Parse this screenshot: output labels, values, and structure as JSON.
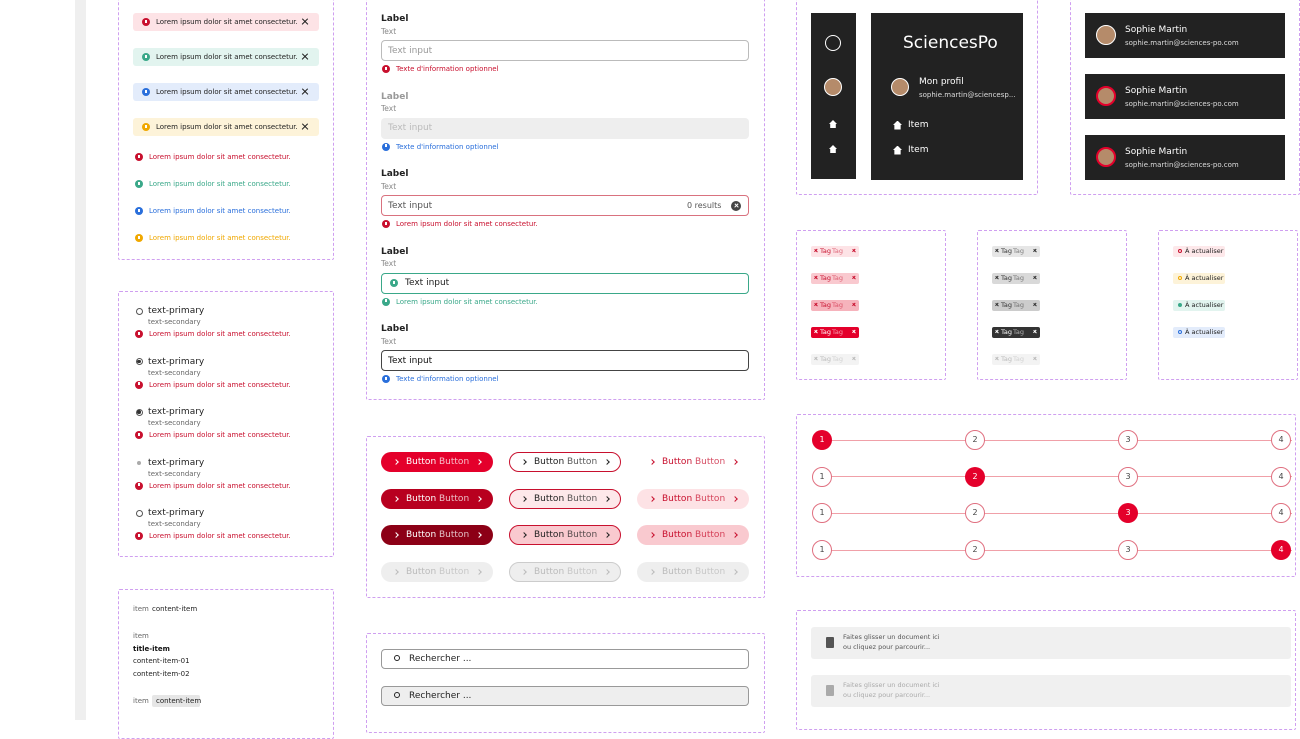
{
  "alerts": {
    "boxed": [
      "Lorem ipsum dolor sit amet consectetur.",
      "Lorem ipsum dolor sit amet consectetur.",
      "Lorem ipsum dolor sit amet consectetur.",
      "Lorem ipsum dolor sit amet consectetur."
    ],
    "inline": [
      "Lorem ipsum dolor sit amet consectetur.",
      "Lorem ipsum dolor sit amet consectetur.",
      "Lorem ipsum dolor sit amet consectetur.",
      "Lorem ipsum dolor sit amet consectetur."
    ]
  },
  "radios": [
    {
      "title": "text-primary",
      "subtitle": "text-secondary",
      "error": "Lorem ipsum dolor sit amet consectetur.",
      "state": "empty"
    },
    {
      "title": "text-primary",
      "subtitle": "text-secondary",
      "error": "Lorem ipsum dolor sit amet consectetur.",
      "state": "checked"
    },
    {
      "title": "text-primary",
      "subtitle": "text-secondary",
      "error": "Lorem ipsum dolor sit amet consectetur.",
      "state": "checked"
    },
    {
      "title": "text-primary",
      "subtitle": "text-secondary",
      "error": "Lorem ipsum dolor sit amet consectetur.",
      "state": "disabled"
    },
    {
      "title": "text-primary",
      "subtitle": "text-secondary",
      "error": "Lorem ipsum dolor sit amet consectetur.",
      "state": "empty"
    }
  ],
  "list": {
    "row1": [
      "item",
      "content-item"
    ],
    "group": [
      "item",
      "title-item",
      "content-item-01",
      "content-item-02"
    ],
    "row3": [
      "item",
      "content-item"
    ]
  },
  "fields": [
    {
      "label": "Label",
      "hint": "Text",
      "placeholder": "Text input",
      "message": "Texte  d'information optionnel",
      "state": "default"
    },
    {
      "label": "Label",
      "hint": "Text",
      "placeholder": "Text input",
      "message": "Texte  d'information optionnel",
      "state": "disabled"
    },
    {
      "label": "Label",
      "hint": "Text",
      "placeholder": "Text input",
      "counter": "0 results",
      "message": "Lorem ipsum dolor sit amet consectetur.",
      "state": "error"
    },
    {
      "label": "Label",
      "hint": "Text",
      "placeholder": "Text input",
      "message": "Lorem ipsum dolor sit amet consectetur.",
      "state": "success"
    },
    {
      "label": "Label",
      "hint": "Text",
      "placeholder": "Text input",
      "message": "Texte  d'information optionnel",
      "state": "focus"
    }
  ],
  "buttons": [
    [
      [
        "Button",
        "Button"
      ],
      [
        "Button",
        "Button"
      ],
      [
        "Button",
        "Button"
      ]
    ],
    [
      [
        "Button",
        "Button"
      ],
      [
        "Button",
        "Button"
      ],
      [
        "Button",
        "Button"
      ]
    ],
    [
      [
        "Button",
        "Button"
      ],
      [
        "Button",
        "Button"
      ],
      [
        "Button",
        "Button"
      ]
    ],
    [
      [
        "Button",
        "Button"
      ],
      [
        "Button",
        "Button"
      ],
      [
        "Button",
        "Button"
      ]
    ]
  ],
  "search": [
    "Rechercher ...",
    "Rechercher ..."
  ],
  "sidebar": {
    "brand": "SciencesPo",
    "profile": "Mon profil",
    "email": "sophie.martin@sciencesp...",
    "items": [
      "Item",
      "Item"
    ]
  },
  "profiles": [
    {
      "name": "Sophie Martin",
      "email": "sophie.martin@sciences-po.com"
    },
    {
      "name": "Sophie Martin",
      "email": "sophie.martin@sciences-po.com"
    },
    {
      "name": "Sophie Martin",
      "email": "sophie.martin@sciences-po.com"
    }
  ],
  "tags": {
    "red": [
      [
        "Tag",
        "Tag"
      ],
      [
        "Tag",
        "Tag"
      ],
      [
        "Tag",
        "Tag"
      ],
      [
        "Tag",
        "Tag"
      ],
      [
        "Tag",
        "Tag"
      ]
    ],
    "gray": [
      [
        "Tag",
        "Tag"
      ],
      [
        "Tag",
        "Tag"
      ],
      [
        "Tag",
        "Tag"
      ],
      [
        "Tag",
        "Tag"
      ],
      [
        "Tag",
        "Tag"
      ]
    ],
    "status": [
      "À actualiser",
      "À actualiser",
      "À actualiser",
      "À actualiser"
    ]
  },
  "steppers": {
    "steps": [
      "1",
      "2",
      "3",
      "4"
    ],
    "rows": 4
  },
  "upload": [
    {
      "line1": "Faites glisser un document ici",
      "line2": "ou cliquez pour parcourir..."
    },
    {
      "line1": "Faites glisser un document ici",
      "line2": "ou cliquez pour parcourir..."
    }
  ]
}
